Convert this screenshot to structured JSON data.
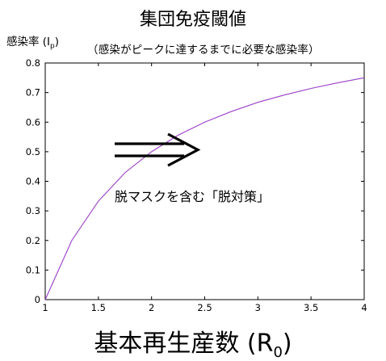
{
  "chart_data": {
    "type": "line",
    "title": "集団免疫閾値",
    "subtitle": "（感染がピークに達するまでに必要な感染率）",
    "ylabel": "感染率 (I",
    "ylabel_sub": "p",
    "ylabel_close": ")",
    "xlabel": "基本再生産数 (R",
    "xlabel_sub": "0",
    "xlabel_close": ")",
    "xlim": [
      1,
      4
    ],
    "ylim": [
      0,
      0.8
    ],
    "xticks": [
      "1",
      "1.5",
      "2",
      "2.5",
      "3",
      "3.5",
      "4"
    ],
    "yticks": [
      "0",
      "0.1",
      "0.2",
      "0.3",
      "0.4",
      "0.5",
      "0.6",
      "0.7",
      "0.8"
    ],
    "series": [
      {
        "color": "#9b3fc8",
        "x": [
          1,
          1.25,
          1.5,
          1.75,
          2,
          2.25,
          2.5,
          2.75,
          3,
          3.25,
          3.5,
          3.75,
          4
        ],
        "y": [
          0,
          0.2,
          0.333,
          0.429,
          0.5,
          0.556,
          0.6,
          0.636,
          0.667,
          0.692,
          0.714,
          0.733,
          0.75
        ]
      }
    ],
    "annotation": {
      "arrow_symbol": "⟹",
      "text": "脱マスクを含む「脱対策」"
    },
    "grid": false
  }
}
